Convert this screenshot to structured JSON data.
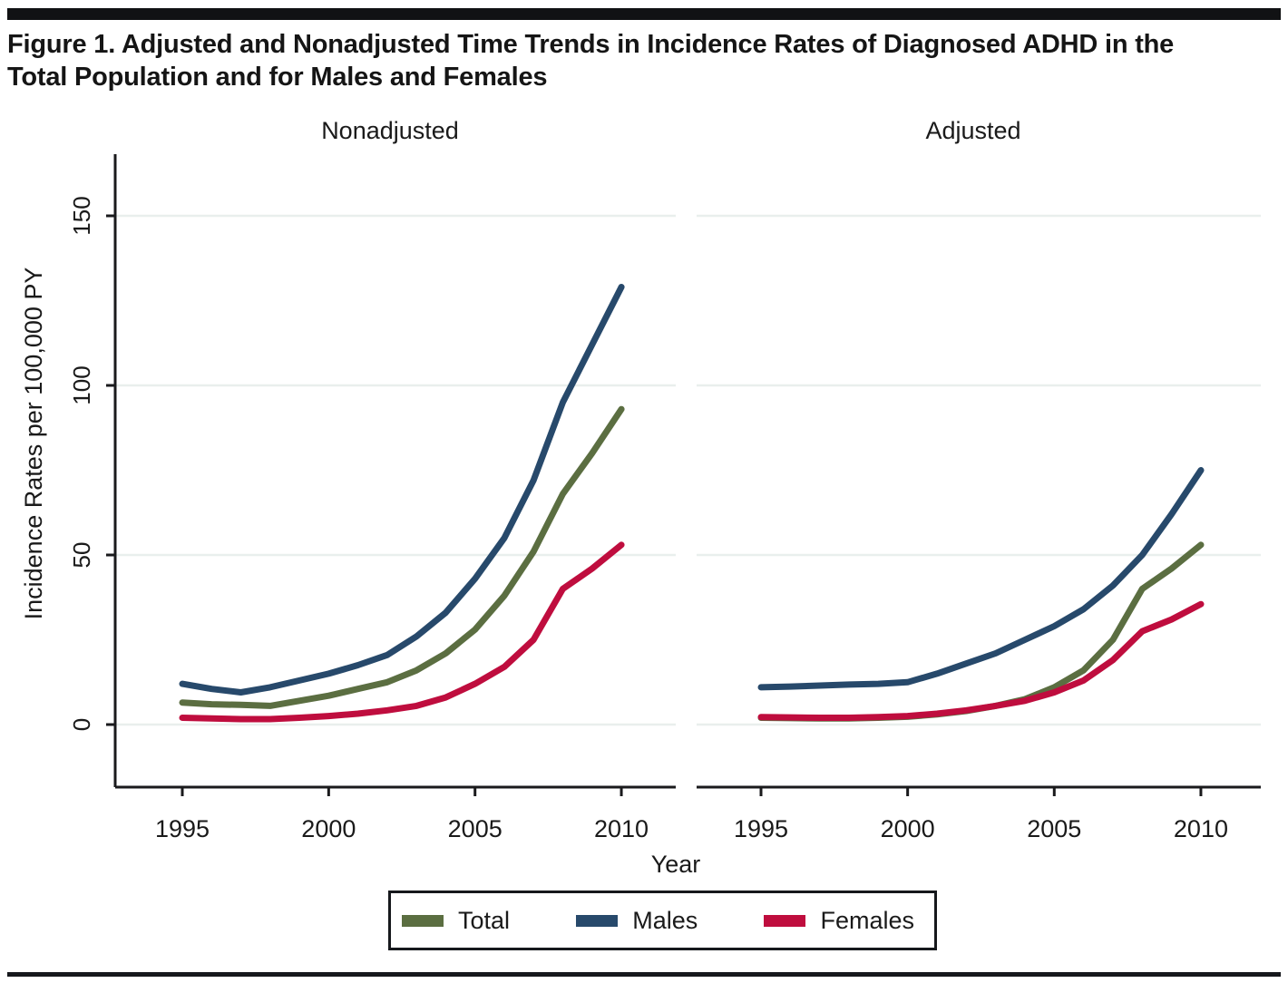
{
  "title": "Figure 1. Adjusted and Nonadjusted Time Trends in Incidence Rates of Diagnosed ADHD in the Total Population and for Males and Females",
  "colors": {
    "total": "#5b6e41",
    "males": "#27496b",
    "females": "#bf0d3e",
    "gridline": "#e9efed",
    "axis": "#1a1a1c",
    "text": "#1a1a1a"
  },
  "legend": {
    "position": "bottom",
    "items": [
      {
        "label": "Total",
        "color": "#5b6e41"
      },
      {
        "label": "Males",
        "color": "#27496b"
      },
      {
        "label": "Females",
        "color": "#bf0d3e"
      }
    ]
  },
  "chart_data": {
    "type": "line",
    "xlabel": "Year",
    "ylabel": "Incidence Rates per 100,000 PY",
    "x": [
      1995,
      1996,
      1997,
      1998,
      1999,
      2000,
      2001,
      2002,
      2003,
      2004,
      2005,
      2006,
      2007,
      2008,
      2009,
      2010
    ],
    "xticks": [
      1995,
      2000,
      2005,
      2010
    ],
    "yticks": [
      0,
      50,
      100,
      150
    ],
    "ylim": [
      0,
      150
    ],
    "grid": true,
    "panels": [
      {
        "title": "Nonadjusted",
        "series": [
          {
            "name": "Total",
            "color": "#5b6e41",
            "values": [
              6.5,
              6.0,
              5.8,
              5.5,
              7.0,
              8.5,
              10.5,
              12.5,
              16.0,
              21.0,
              28.0,
              38.0,
              51.0,
              68.0,
              80.0,
              93.0
            ]
          },
          {
            "name": "Males",
            "color": "#27496b",
            "values": [
              12.0,
              10.5,
              9.5,
              11.0,
              13.0,
              15.0,
              17.5,
              20.5,
              26.0,
              33.0,
              43.0,
              55.0,
              72.0,
              95.0,
              112.0,
              129.0
            ]
          },
          {
            "name": "Females",
            "color": "#bf0d3e",
            "values": [
              2.0,
              1.8,
              1.6,
              1.6,
              2.0,
              2.5,
              3.2,
              4.2,
              5.5,
              8.0,
              12.0,
              17.0,
              25.0,
              40.0,
              46.0,
              53.0
            ]
          }
        ]
      },
      {
        "title": "Adjusted",
        "series": [
          {
            "name": "Total",
            "color": "#5b6e41",
            "values": [
              2.0,
              1.9,
              1.8,
              1.8,
              2.0,
              2.3,
              3.0,
              4.0,
              5.5,
              7.5,
              11.0,
              16.0,
              25.0,
              40.0,
              46.0,
              53.0
            ]
          },
          {
            "name": "Males",
            "color": "#27496b",
            "values": [
              11.0,
              11.2,
              11.5,
              11.8,
              12.0,
              12.5,
              15.0,
              18.0,
              21.0,
              25.0,
              29.0,
              34.0,
              41.0,
              50.0,
              62.0,
              75.0
            ]
          },
          {
            "name": "Females",
            "color": "#bf0d3e",
            "values": [
              2.2,
              2.1,
              2.0,
              2.0,
              2.2,
              2.5,
              3.2,
              4.2,
              5.5,
              7.0,
              9.5,
              13.0,
              19.0,
              27.5,
              31.0,
              35.5
            ]
          }
        ]
      }
    ]
  }
}
